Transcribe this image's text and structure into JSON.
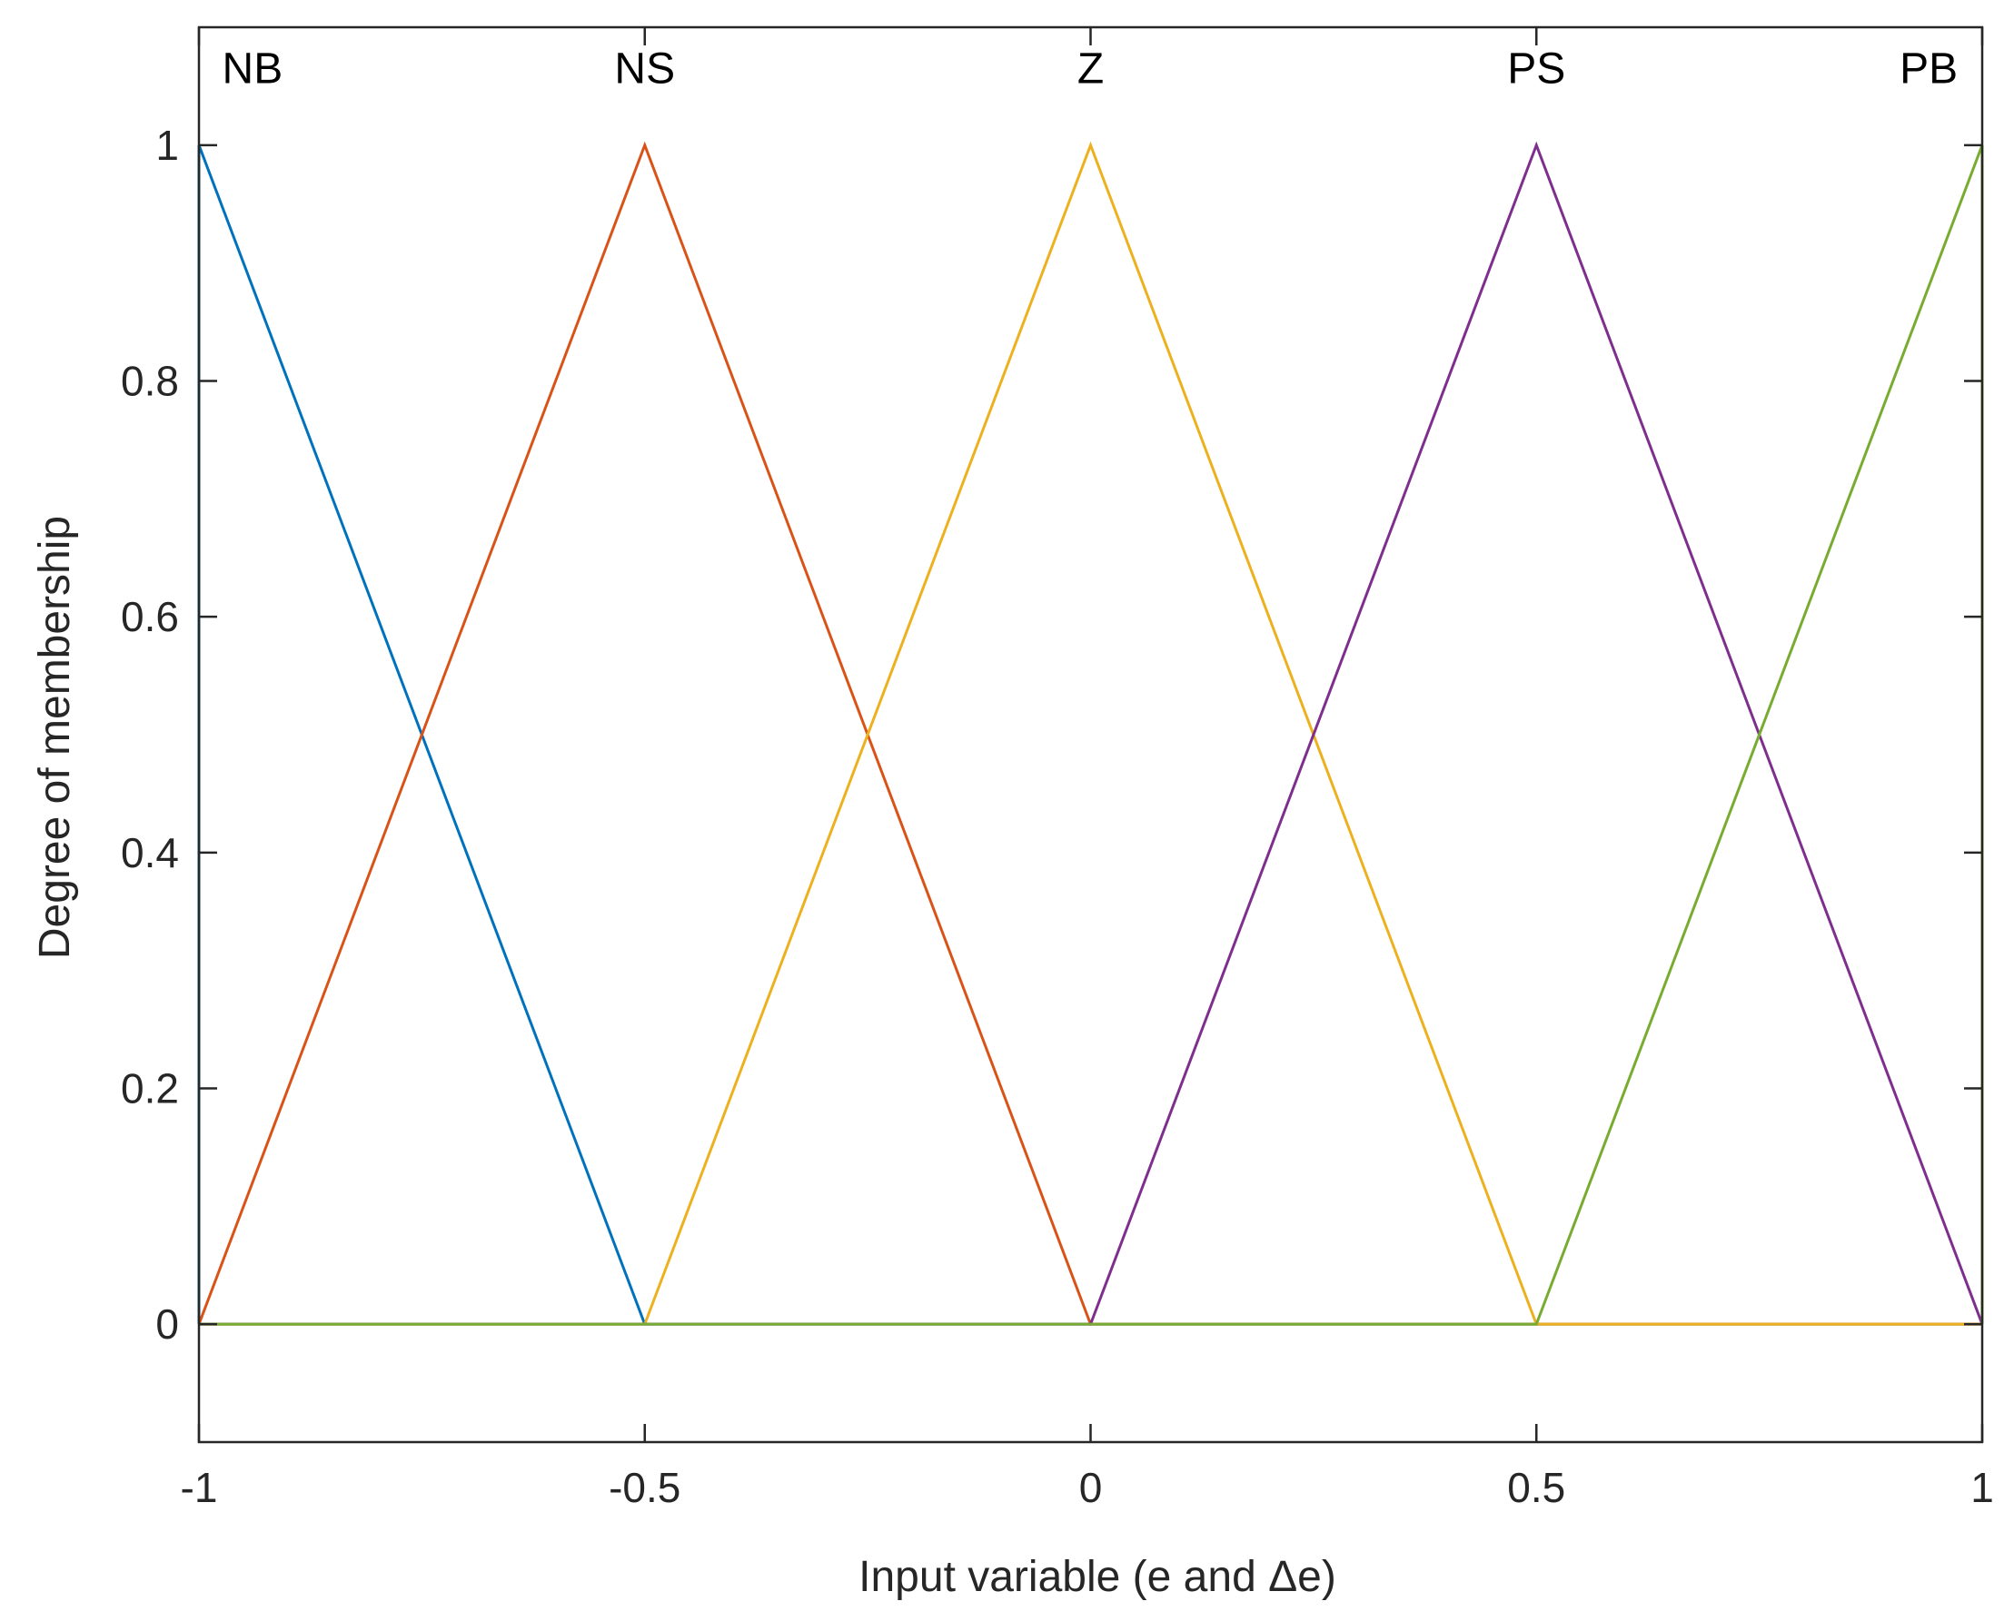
{
  "chart_data": {
    "type": "line",
    "title": "",
    "xlabel": "Input variable (e and Δe)",
    "ylabel": "Degree of membership",
    "xlim": [
      -1,
      1
    ],
    "ylim": [
      -0.1,
      1.1
    ],
    "xticks": [
      -1,
      -0.5,
      0,
      0.5,
      1
    ],
    "xtick_labels": [
      "-1",
      "-0.5",
      "0",
      "0.5",
      "1"
    ],
    "yticks": [
      0,
      0.2,
      0.4,
      0.6,
      0.8,
      1
    ],
    "ytick_labels": [
      "0",
      "0.2",
      "0.4",
      "0.6",
      "0.8",
      "1"
    ],
    "grid": false,
    "legend": "none",
    "series": [
      {
        "name": "NB",
        "color": "#0072BD",
        "x": [
          -1,
          -1,
          -0.5,
          1
        ],
        "y": [
          0,
          1,
          0,
          0
        ]
      },
      {
        "name": "NS",
        "color": "#D95319",
        "x": [
          -1,
          -0.5,
          0,
          1
        ],
        "y": [
          0,
          1,
          0,
          0
        ]
      },
      {
        "name": "Z",
        "color": "#EDB120",
        "x": [
          -1,
          -0.5,
          0,
          0.5,
          1
        ],
        "y": [
          0,
          0,
          1,
          0,
          0
        ]
      },
      {
        "name": "PS",
        "color": "#7E2F8E",
        "x": [
          -1,
          0,
          0.5,
          1
        ],
        "y": [
          0,
          0,
          1,
          0
        ]
      },
      {
        "name": "PB",
        "color": "#77AC30",
        "x": [
          -1,
          0.5,
          1,
          1
        ],
        "y": [
          0,
          0,
          1,
          0
        ]
      }
    ],
    "annotations": [
      {
        "text": "NB",
        "x": -0.94,
        "y": 1.065
      },
      {
        "text": "NS",
        "x": -0.5,
        "y": 1.065
      },
      {
        "text": "Z",
        "x": 0,
        "y": 1.065
      },
      {
        "text": "PS",
        "x": 0.5,
        "y": 1.065
      },
      {
        "text": "PB",
        "x": 0.94,
        "y": 1.065
      }
    ]
  }
}
